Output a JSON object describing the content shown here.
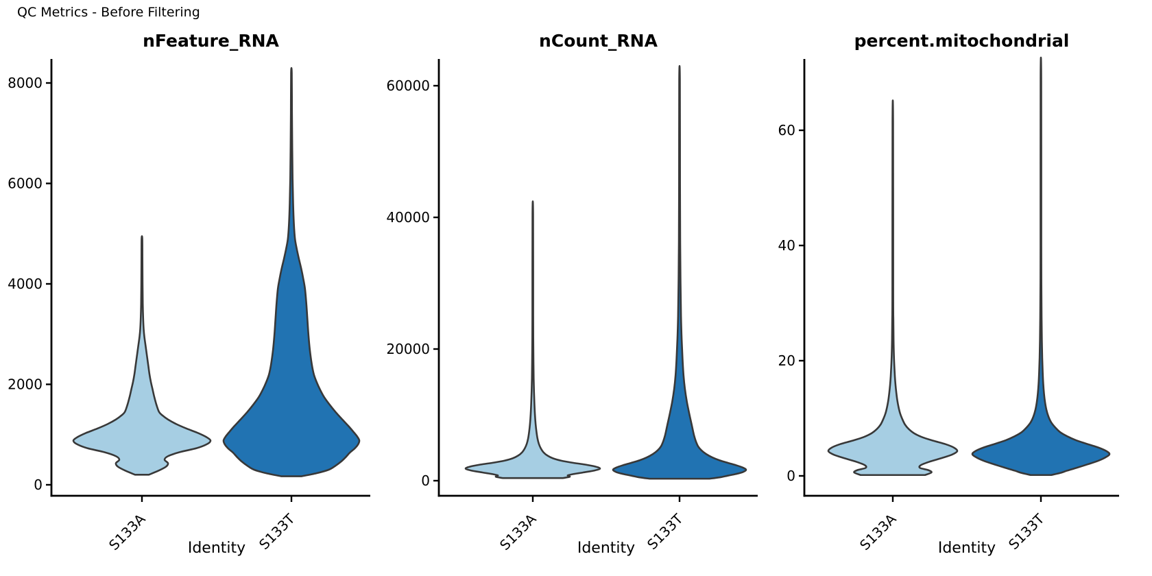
{
  "figure_title": "QC Metrics - Before Filtering",
  "chart_data": {
    "type": "violin",
    "title": "QC Metrics - Before Filtering",
    "xlabel": "Identity",
    "categories": [
      "S133A",
      "S133T"
    ],
    "colors": {
      "S133A": "#A6CEE3",
      "S133T": "#2173B2",
      "outline": "#383838",
      "axis": "#000000"
    },
    "legend": "none",
    "grid": false,
    "panels": [
      {
        "title": "nFeature_RNA",
        "yticks": [
          0,
          2000,
          4000,
          6000,
          8000
        ],
        "ylim": [
          0,
          8600
        ],
        "violins": [
          {
            "group": "S133A",
            "min": 200,
            "max": 4900,
            "widest_at": 880,
            "density": [
              [
                200,
                0.1
              ],
              [
                280,
                0.24
              ],
              [
                360,
                0.35
              ],
              [
                430,
                0.38
              ],
              [
                500,
                0.33
              ],
              [
                570,
                0.38
              ],
              [
                650,
                0.55
              ],
              [
                730,
                0.8
              ],
              [
                810,
                0.95
              ],
              [
                880,
                1.0
              ],
              [
                950,
                0.94
              ],
              [
                1030,
                0.82
              ],
              [
                1120,
                0.65
              ],
              [
                1210,
                0.5
              ],
              [
                1300,
                0.38
              ],
              [
                1380,
                0.3
              ],
              [
                1450,
                0.25
              ],
              [
                1600,
                0.21
              ],
              [
                1750,
                0.18
              ],
              [
                1900,
                0.155
              ],
              [
                2050,
                0.13
              ],
              [
                2200,
                0.11
              ],
              [
                2350,
                0.095
              ],
              [
                2500,
                0.08
              ],
              [
                2650,
                0.065
              ],
              [
                2800,
                0.05
              ],
              [
                2950,
                0.035
              ],
              [
                3100,
                0.025
              ],
              [
                3300,
                0.018
              ],
              [
                3600,
                0.012
              ],
              [
                4000,
                0.009
              ],
              [
                4500,
                0.007
              ],
              [
                4900,
                0.005
              ]
            ]
          },
          {
            "group": "S133T",
            "min": 170,
            "max": 8200,
            "widest_at": 880,
            "density": [
              [
                170,
                0.15
              ],
              [
                230,
                0.37
              ],
              [
                300,
                0.55
              ],
              [
                380,
                0.65
              ],
              [
                460,
                0.73
              ],
              [
                550,
                0.8
              ],
              [
                640,
                0.86
              ],
              [
                720,
                0.93
              ],
              [
                800,
                0.98
              ],
              [
                880,
                1.0
              ],
              [
                960,
                0.97
              ],
              [
                1060,
                0.91
              ],
              [
                1170,
                0.84
              ],
              [
                1300,
                0.75
              ],
              [
                1450,
                0.65
              ],
              [
                1600,
                0.56
              ],
              [
                1750,
                0.48
              ],
              [
                1900,
                0.42
              ],
              [
                2050,
                0.37
              ],
              [
                2200,
                0.33
              ],
              [
                2400,
                0.3
              ],
              [
                2700,
                0.27
              ],
              [
                3000,
                0.25
              ],
              [
                3300,
                0.235
              ],
              [
                3600,
                0.22
              ],
              [
                3900,
                0.2
              ],
              [
                4100,
                0.175
              ],
              [
                4300,
                0.145
              ],
              [
                4500,
                0.11
              ],
              [
                4700,
                0.078
              ],
              [
                4900,
                0.052
              ],
              [
                5200,
                0.036
              ],
              [
                5600,
                0.025
              ],
              [
                6100,
                0.017
              ],
              [
                6700,
                0.012
              ],
              [
                7400,
                0.008
              ],
              [
                8200,
                0.005
              ]
            ]
          }
        ]
      },
      {
        "title": "nCount_RNA",
        "yticks": [
          0,
          20000,
          40000,
          60000
        ],
        "ylim": [
          0,
          64000
        ],
        "violins": [
          {
            "group": "S133A",
            "min": 400,
            "max": 40500,
            "widest_at": 1850,
            "density": [
              [
                400,
                0.45
              ],
              [
                600,
                0.55
              ],
              [
                800,
                0.52
              ],
              [
                1000,
                0.6
              ],
              [
                1250,
                0.75
              ],
              [
                1550,
                0.92
              ],
              [
                1850,
                1.0
              ],
              [
                2150,
                0.93
              ],
              [
                2450,
                0.78
              ],
              [
                2750,
                0.58
              ],
              [
                3050,
                0.42
              ],
              [
                3400,
                0.3
              ],
              [
                3800,
                0.22
              ],
              [
                4300,
                0.16
              ],
              [
                4900,
                0.12
              ],
              [
                5600,
                0.09
              ],
              [
                6400,
                0.07
              ],
              [
                7400,
                0.055
              ],
              [
                8600,
                0.042
              ],
              [
                10000,
                0.032
              ],
              [
                11700,
                0.024
              ],
              [
                13500,
                0.018
              ],
              [
                15500,
                0.013
              ],
              [
                18000,
                0.01
              ],
              [
                21000,
                0.0075
              ],
              [
                25000,
                0.006
              ],
              [
                40500,
                0.0045
              ]
            ]
          },
          {
            "group": "S133T",
            "min": 300,
            "max": 61000,
            "widest_at": 1650,
            "density": [
              [
                300,
                0.45
              ],
              [
                500,
                0.6
              ],
              [
                750,
                0.72
              ],
              [
                1000,
                0.84
              ],
              [
                1300,
                0.95
              ],
              [
                1650,
                1.0
              ],
              [
                2000,
                0.95
              ],
              [
                2350,
                0.85
              ],
              [
                2700,
                0.73
              ],
              [
                3100,
                0.6
              ],
              [
                3550,
                0.49
              ],
              [
                4050,
                0.4
              ],
              [
                4600,
                0.33
              ],
              [
                5200,
                0.28
              ],
              [
                6000,
                0.245
              ],
              [
                7000,
                0.215
              ],
              [
                8400,
                0.185
              ],
              [
                10000,
                0.15
              ],
              [
                12000,
                0.11
              ],
              [
                14000,
                0.08
              ],
              [
                16000,
                0.06
              ],
              [
                18500,
                0.045
              ],
              [
                21500,
                0.032
              ],
              [
                25000,
                0.022
              ],
              [
                30000,
                0.015
              ],
              [
                36000,
                0.01
              ],
              [
                45000,
                0.007
              ],
              [
                61000,
                0.005
              ]
            ]
          }
        ]
      },
      {
        "title": "percent.mitochondrial",
        "yticks": [
          0,
          20,
          40,
          60
        ],
        "ylim": [
          0,
          70
        ],
        "violins": [
          {
            "group": "S133A",
            "min": 0,
            "max": 61.5,
            "widest_at": 4.3,
            "density": [
              [
                0.15,
                0.5
              ],
              [
                0.6,
                0.6
              ],
              [
                1.0,
                0.55
              ],
              [
                1.4,
                0.42
              ],
              [
                1.9,
                0.44
              ],
              [
                2.5,
                0.58
              ],
              [
                3.1,
                0.76
              ],
              [
                3.7,
                0.92
              ],
              [
                4.3,
                1.0
              ],
              [
                4.9,
                0.95
              ],
              [
                5.5,
                0.82
              ],
              [
                6.1,
                0.63
              ],
              [
                6.7,
                0.46
              ],
              [
                7.4,
                0.33
              ],
              [
                8.1,
                0.25
              ],
              [
                8.9,
                0.19
              ],
              [
                9.8,
                0.15
              ],
              [
                10.8,
                0.115
              ],
              [
                11.9,
                0.09
              ],
              [
                13.1,
                0.07
              ],
              [
                14.4,
                0.055
              ],
              [
                15.8,
                0.042
              ],
              [
                17.3,
                0.032
              ],
              [
                19.0,
                0.024
              ],
              [
                21.0,
                0.017
              ],
              [
                23.5,
                0.012
              ],
              [
                27.0,
                0.009
              ],
              [
                32.0,
                0.0065
              ],
              [
                61.5,
                0.0045
              ]
            ]
          },
          {
            "group": "S133T",
            "min": 0,
            "max": 69,
            "widest_at": 3.8,
            "density": [
              [
                0.15,
                0.15
              ],
              [
                0.5,
                0.28
              ],
              [
                0.9,
                0.38
              ],
              [
                1.4,
                0.52
              ],
              [
                2.0,
                0.68
              ],
              [
                2.6,
                0.83
              ],
              [
                3.2,
                0.94
              ],
              [
                3.8,
                1.0
              ],
              [
                4.4,
                0.94
              ],
              [
                5.0,
                0.82
              ],
              [
                5.6,
                0.66
              ],
              [
                6.2,
                0.51
              ],
              [
                6.9,
                0.38
              ],
              [
                7.6,
                0.28
              ],
              [
                8.4,
                0.21
              ],
              [
                9.3,
                0.15
              ],
              [
                10.3,
                0.11
              ],
              [
                11.5,
                0.08
              ],
              [
                12.8,
                0.06
              ],
              [
                14.3,
                0.045
              ],
              [
                16.0,
                0.034
              ],
              [
                18.0,
                0.026
              ],
              [
                20.5,
                0.019
              ],
              [
                23.5,
                0.014
              ],
              [
                27.5,
                0.01
              ],
              [
                33.0,
                0.007
              ],
              [
                40.0,
                0.0055
              ],
              [
                69.0,
                0.0045
              ]
            ]
          }
        ]
      }
    ]
  }
}
